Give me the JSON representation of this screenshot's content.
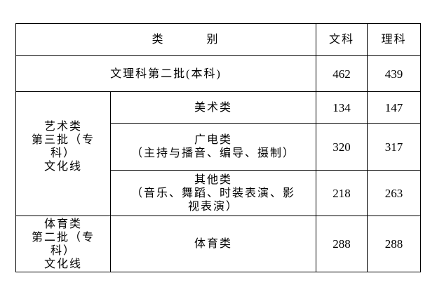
{
  "header": {
    "category": "类          别",
    "wen": "文科",
    "li": "理科"
  },
  "rows": {
    "benke": {
      "label": "文理科第二批(本科)",
      "wen": "462",
      "li": "439"
    },
    "art_group": {
      "line1": "艺术类",
      "line2": "第三批（专",
      "line3": "科）",
      "line4": "文化线"
    },
    "meishu": {
      "label": "美术类",
      "wen": "134",
      "li": "147"
    },
    "guangdian": {
      "line1": "广电类",
      "line2": "（主持与播音、编导、摄制）",
      "wen": "320",
      "li": "317"
    },
    "qita": {
      "line1": "其他类",
      "line2": "（音乐、舞蹈、时装表演、影",
      "line3": "视表演）",
      "wen": "218",
      "li": "263"
    },
    "sport_group": {
      "line1": "体育类",
      "line2": "第二批（专",
      "line3": "科）",
      "line4": "文化线"
    },
    "tiyu": {
      "label": "体育类",
      "wen": "288",
      "li": "288"
    }
  }
}
